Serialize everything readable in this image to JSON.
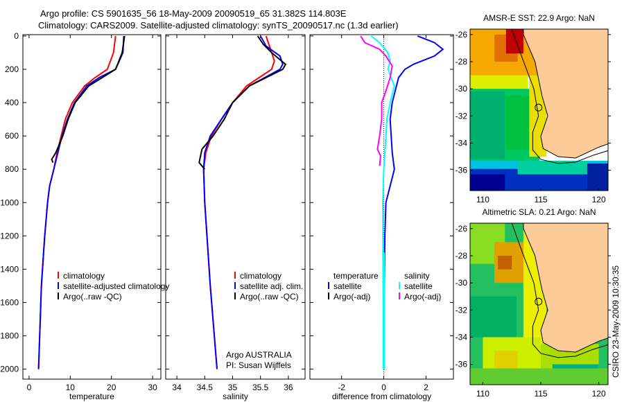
{
  "title_line1": "Argo profile: CS 5901635_56 18-May-2009 20090519_65 31.382S 114.803E",
  "title_line2": "Climatology: CARS2009. Satellite-adjusted climatology: synTS_20090517.nc (1.3d earlier)",
  "side_stamp": "CSIRO 23-May-2009 10:30:35",
  "colors": {
    "climatology": "#ff0000",
    "satellite": "#0000ff",
    "argo": "#000000",
    "sal_sat": "#00ffff",
    "sal_argo": "#ff00ff"
  },
  "chart_data": [
    {
      "type": "line",
      "xlabel": "temperature",
      "ylabel": "",
      "xlim": [
        -1.5,
        32
      ],
      "ylim": [
        2060,
        -8
      ],
      "xticks": [
        "0",
        "10",
        "20",
        "30"
      ],
      "xtick_vals": [
        0,
        10,
        20,
        30
      ],
      "yticks": [
        "0",
        "200",
        "400",
        "600",
        "800",
        "1000",
        "1200",
        "1400",
        "1600",
        "1800",
        "2000"
      ],
      "legend": [
        "climatology",
        "satellite-adjusted climatology",
        "Argo(..raw -QC)"
      ],
      "series": [
        {
          "name": "climatology",
          "color": "#ff0000",
          "depth": [
            0,
            100,
            200,
            250,
            300,
            400,
            500,
            600,
            700,
            800,
            900,
            1000,
            1200,
            1500,
            2000
          ],
          "values": [
            21,
            20.5,
            19,
            16,
            13.5,
            10.5,
            8.8,
            7.8,
            6.8,
            6,
            5,
            4.5,
            3.8,
            3,
            2.3
          ]
        },
        {
          "name": "satellite-adjusted climatology",
          "color": "#0000ff",
          "depth": [
            0,
            100,
            200,
            250,
            300,
            400,
            500,
            600,
            700,
            800,
            900,
            1000,
            1200,
            1500,
            2000
          ],
          "values": [
            23,
            22.8,
            21,
            17,
            14,
            11,
            9.3,
            8,
            7,
            6,
            5,
            4.5,
            3.8,
            3,
            2.3
          ]
        },
        {
          "name": "Argo(..raw -QC)",
          "color": "#000000",
          "depth": [
            0,
            100,
            200,
            300,
            400,
            500,
            600,
            700,
            740,
            760
          ],
          "values": [
            23.2,
            22.6,
            21,
            14.5,
            11.2,
            9.5,
            8.2,
            6.5,
            5.5,
            5.8
          ]
        }
      ]
    },
    {
      "type": "line",
      "xlabel": "salinity",
      "xlim": [
        33.8,
        36.3
      ],
      "xticks": [
        "34",
        "34.5",
        "35",
        "35.5",
        "36"
      ],
      "xtick_vals": [
        34,
        34.5,
        35,
        35.5,
        36
      ],
      "legend": [
        "climatology",
        "satellite adj. clim.",
        "Argo(..raw -QC)"
      ],
      "annotation": [
        "Argo AUSTRALIA",
        "PI: Susan Wijffels"
      ],
      "series": [
        {
          "name": "climatology",
          "color": "#ff0000",
          "depth": [
            0,
            100,
            150,
            200,
            300,
            400,
            500,
            600,
            700,
            800,
            1000,
            1500,
            2000
          ],
          "values": [
            35.6,
            35.7,
            35.75,
            35.7,
            35.25,
            35.0,
            34.8,
            34.62,
            34.52,
            34.48,
            34.5,
            34.6,
            34.72
          ]
        },
        {
          "name": "satellite adj. clim.",
          "color": "#0000ff",
          "depth": [
            0,
            60,
            120,
            170,
            200,
            300,
            400,
            500,
            600,
            700,
            800,
            1000,
            1500,
            2000
          ],
          "values": [
            35.5,
            35.6,
            35.85,
            35.9,
            35.85,
            35.3,
            35.0,
            34.8,
            34.6,
            34.5,
            34.48,
            34.5,
            34.6,
            34.72
          ]
        },
        {
          "name": "Argo(..raw -QC)",
          "color": "#000000",
          "depth": [
            0,
            50,
            100,
            170,
            200,
            250,
            300,
            400,
            500,
            600,
            680,
            760,
            800
          ],
          "values": [
            35.45,
            35.55,
            35.7,
            35.95,
            35.9,
            35.6,
            35.3,
            35.0,
            34.85,
            34.65,
            34.45,
            34.4,
            34.5
          ]
        }
      ]
    },
    {
      "type": "line",
      "xlabel": "difference from climatology",
      "xlim": [
        -3.5,
        3.3
      ],
      "xticks": [
        "-2",
        "0",
        "2"
      ],
      "xtick_vals": [
        -2,
        0,
        2
      ],
      "legend_temperature": [
        "temperature",
        "satellite",
        "Argo(-adj)"
      ],
      "legend_salinity": [
        "salinity",
        "satellite",
        "Argo(-adj)"
      ],
      "series": [
        {
          "name": "temperature satellite",
          "color": "#0000ff",
          "depth": [
            0,
            40,
            80,
            120,
            170,
            200,
            250,
            300,
            400,
            500,
            600,
            700,
            800,
            900,
            1000,
            1200,
            1500,
            2000
          ],
          "values": [
            1.6,
            2.4,
            2.8,
            2.4,
            1.4,
            1.0,
            0.7,
            0.6,
            0.4,
            0.3,
            0.35,
            0.4,
            0.5,
            0.3,
            0.1,
            0.05,
            0.02,
            0
          ]
        },
        {
          "name": "salinity satellite",
          "color": "#00ffff",
          "depth": [
            0,
            40,
            100,
            150,
            200,
            300,
            400,
            500,
            600,
            800,
            1000,
            1500,
            2000
          ],
          "values": [
            -0.6,
            -0.2,
            0.2,
            0.3,
            0.2,
            0.5,
            0.3,
            0.15,
            0.1,
            0.0,
            -0.05,
            -0.03,
            -0.02
          ]
        },
        {
          "name": "salinity Argo(-adj)",
          "color": "#ff00ff",
          "depth": [
            0,
            40,
            80,
            120,
            180,
            250,
            330,
            400,
            500,
            600,
            680,
            720,
            780
          ],
          "values": [
            -1.1,
            -0.9,
            -0.2,
            0.1,
            0.4,
            0.3,
            0.1,
            -0.1,
            -0.1,
            -0.2,
            -0.3,
            -0.15,
            -0.2
          ]
        }
      ]
    }
  ],
  "maps": [
    {
      "title": "AMSR-E SST: 22.9 Argo: NaN",
      "xticks": [
        "110",
        "115",
        "120"
      ],
      "yticks": [
        "-26",
        "-28",
        "-30",
        "-32",
        "-34",
        "-36"
      ]
    },
    {
      "title": "Altimetric SLA: 0.21 Argo: NaN",
      "xticks": [
        "110",
        "115",
        "120"
      ],
      "yticks": [
        "-26",
        "-28",
        "-30",
        "-32",
        "-34",
        "-36"
      ]
    }
  ]
}
